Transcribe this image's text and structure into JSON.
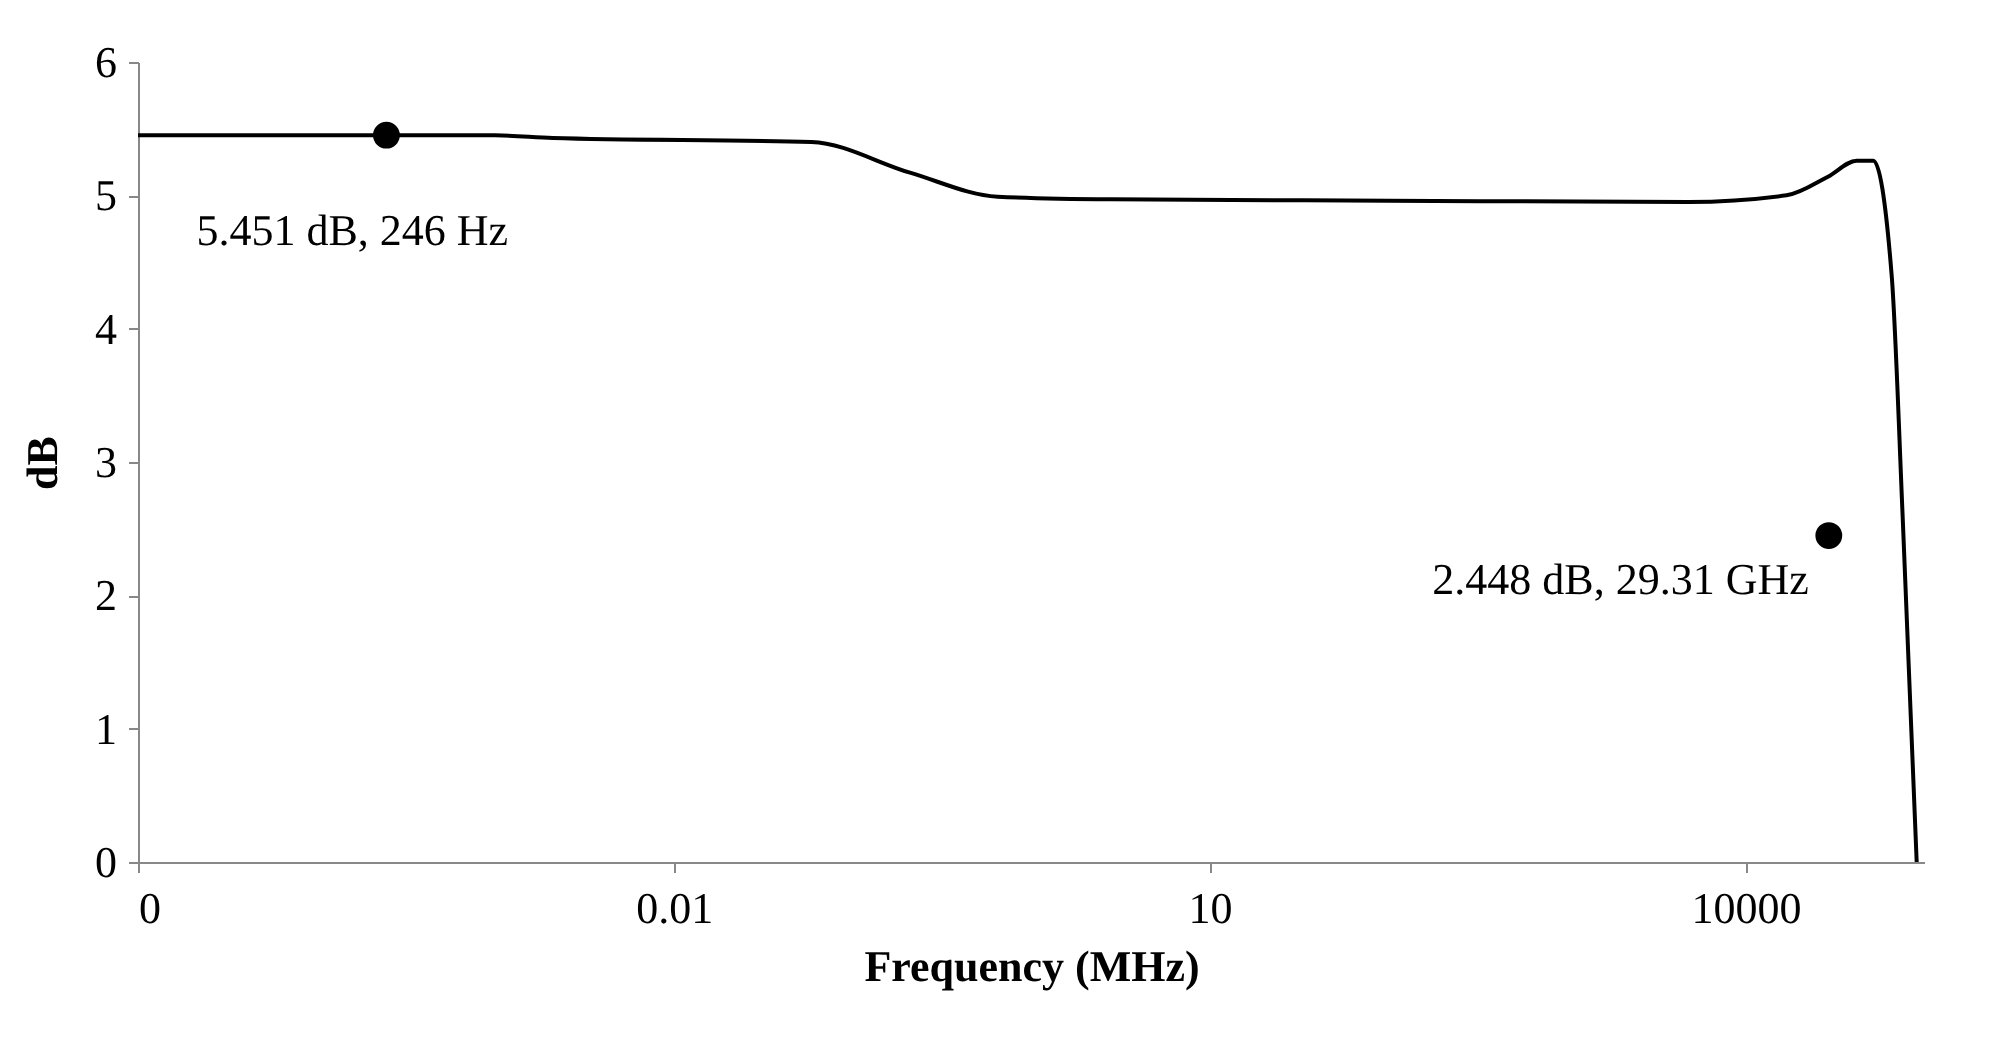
{
  "chart_data": {
    "type": "line",
    "xlabel": "Frequency (MHz)",
    "ylabel": "dB",
    "x": [
      1e-05,
      0.001,
      0.0021,
      0.059,
      0.21,
      0.65,
      2.8,
      100,
      4800,
      17000,
      29000,
      42000,
      52000,
      66000,
      76000,
      91000
    ],
    "series": [
      {
        "color": "#000000",
        "values": [
          5.45,
          5.45,
          5.43,
          5.4,
          5.17,
          4.99,
          4.97,
          4.96,
          4.95,
          5.0,
          5.14,
          5.26,
          5.26,
          4.39,
          2.58,
          0
        ]
      },
      {
        "type": "scatter",
        "color": "#000000",
        "marker": "circle",
        "x": [
          0.000246,
          29310
        ],
        "values": [
          5.451,
          2.448
        ]
      }
    ],
    "annotations": [
      {
        "text": "5.451 dB, 246 Hz",
        "x": 0.000246,
        "y": 5.451
      },
      {
        "text": "2.448 dB, 29.31 GHz",
        "x": 29310,
        "y": 2.448
      }
    ],
    "log": "x",
    "xlim": [
      1e-05,
      100000
    ],
    "xticks": [
      {
        "value": 1e-05,
        "label": "0"
      },
      0.01,
      10,
      10000
    ],
    "ylim": [
      0,
      6
    ],
    "yticks": [
      0,
      1,
      2,
      3,
      4,
      5,
      6
    ],
    "grid": false,
    "marker": "none",
    "line_style": "solid"
  }
}
